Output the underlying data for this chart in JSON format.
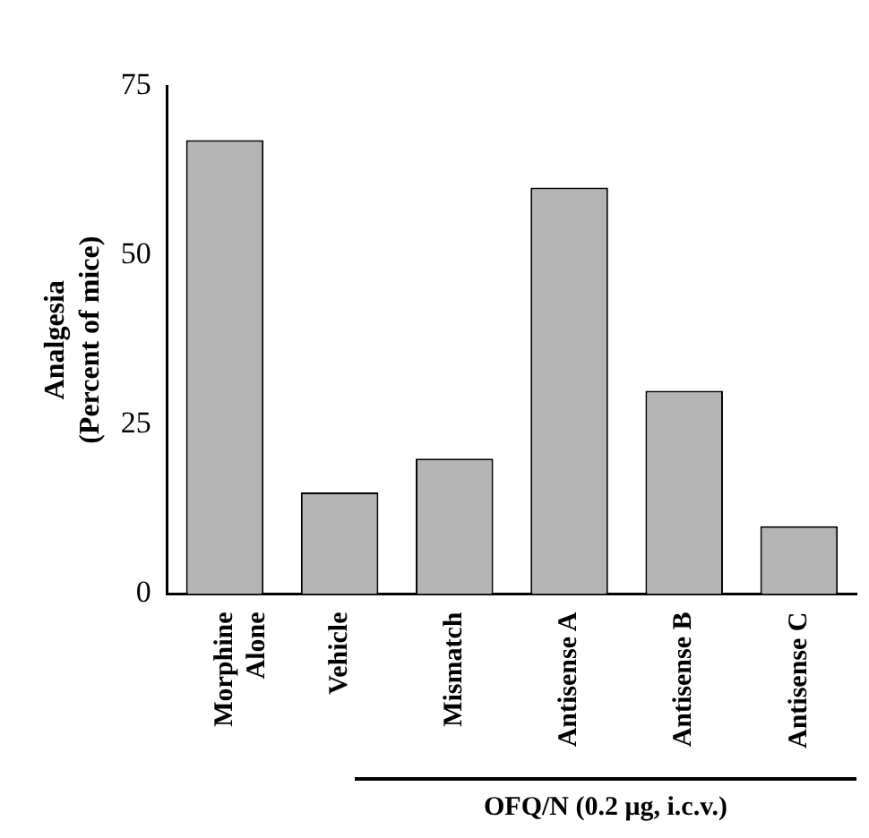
{
  "chart_data": {
    "type": "bar",
    "ylabel": "Analgesia\n(Percent of mice)",
    "categories": [
      "Morphine\nAlone",
      "Vehicle",
      "Mismatch",
      "Antisense A",
      "Antisense B",
      "Antisense C"
    ],
    "values": [
      67,
      15,
      20,
      60,
      30,
      10
    ],
    "color": "#b4b4b4",
    "ylim": [
      0,
      75
    ],
    "yticks": [
      0,
      25,
      50,
      75
    ],
    "grid": false,
    "legend": false,
    "annotations": [
      "OFQ/N (0.2 μg, i.c.v.)"
    ]
  }
}
